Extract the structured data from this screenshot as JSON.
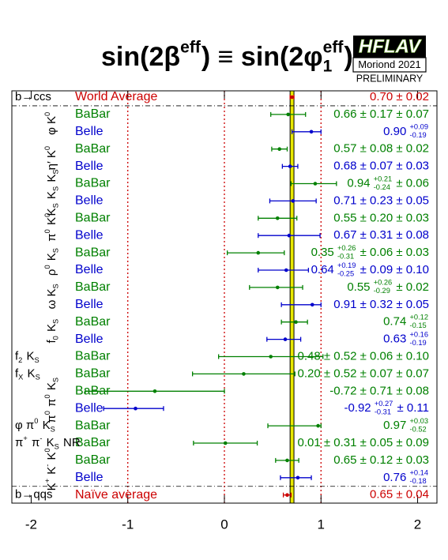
{
  "chart_data": {
    "type": "forest",
    "title": [
      {
        "t": "sin(2β"
      },
      {
        "sup": "eff"
      },
      {
        "t": ") ≡ sin(2φ"
      },
      {
        "sup": "eff",
        "sub": "1"
      },
      {
        "t": ")"
      }
    ],
    "logo": {
      "name": "HFLAV",
      "conference": "Moriond 2021",
      "status": "PRELIMINARY"
    },
    "xlim": [
      -2.2,
      2.2
    ],
    "xticks": [
      -2,
      -1,
      0,
      1,
      2
    ],
    "reference_lines": [
      -1,
      0,
      1
    ],
    "band": {
      "low": 0.68,
      "high": 0.72,
      "color": "#e8e800"
    },
    "groups": [
      {
        "mode": [
          {
            "t": "b→ccs"
          }
        ],
        "rows": [
          {
            "experiment": "World Average",
            "color": "#cc0000",
            "value": 0.7,
            "err_minus": 0.02,
            "err_plus": 0.02,
            "value_label": [
              {
                "t": "0.70 ± 0.02"
              }
            ]
          }
        ]
      },
      {
        "mode": [
          {
            "t": "φ K"
          },
          {
            "sup": "0"
          }
        ],
        "rows": [
          {
            "experiment": "BaBar",
            "color": "#008000",
            "value": 0.66,
            "err_minus": 0.18,
            "err_plus": 0.18,
            "value_label": [
              {
                "t": "0.66 ± 0.17 ± 0.07"
              }
            ]
          },
          {
            "experiment": "Belle",
            "color": "#0000cc",
            "value": 0.9,
            "err_minus": 0.2,
            "err_plus": 0.1,
            "value_label": [
              {
                "t": "0.90 "
              },
              {
                "sup": "+0.09",
                "sub": "-0.19"
              }
            ]
          }
        ]
      },
      {
        "mode": [
          {
            "t": "η′ K"
          },
          {
            "sup": "0"
          }
        ],
        "rows": [
          {
            "experiment": "BaBar",
            "color": "#008000",
            "value": 0.57,
            "err_minus": 0.08,
            "err_plus": 0.08,
            "value_label": [
              {
                "t": "0.57 ± 0.08 ± 0.02"
              }
            ]
          },
          {
            "experiment": "Belle",
            "color": "#0000cc",
            "value": 0.68,
            "err_minus": 0.08,
            "err_plus": 0.08,
            "value_label": [
              {
                "t": "0.68 ± 0.07 ± 0.03"
              }
            ]
          }
        ]
      },
      {
        "mode": [
          {
            "t": "K"
          },
          {
            "sub": "S"
          },
          {
            "t": " K"
          },
          {
            "sub": "S"
          },
          {
            "t": " K"
          },
          {
            "sub": "S"
          }
        ],
        "rows": [
          {
            "experiment": "BaBar",
            "color": "#008000",
            "value": 0.94,
            "err_minus": 0.25,
            "err_plus": 0.22,
            "value_label": [
              {
                "t": "0.94 "
              },
              {
                "sup": "+0.21",
                "sub": "-0.24"
              },
              {
                "t": " ± 0.06"
              }
            ]
          },
          {
            "experiment": "Belle",
            "color": "#0000cc",
            "value": 0.71,
            "err_minus": 0.24,
            "err_plus": 0.24,
            "value_label": [
              {
                "t": "0.71 ± 0.23 ± 0.05"
              }
            ]
          }
        ]
      },
      {
        "mode": [
          {
            "t": "π"
          },
          {
            "sup": "0"
          },
          {
            "t": " K"
          },
          {
            "sup": "0"
          }
        ],
        "rows": [
          {
            "experiment": "BaBar",
            "color": "#008000",
            "value": 0.55,
            "err_minus": 0.2,
            "err_plus": 0.2,
            "value_label": [
              {
                "t": "0.55 ± 0.20 ± 0.03"
              }
            ]
          },
          {
            "experiment": "Belle",
            "color": "#0000cc",
            "value": 0.67,
            "err_minus": 0.32,
            "err_plus": 0.32,
            "value_label": [
              {
                "t": "0.67 ± 0.31 ± 0.08"
              }
            ]
          }
        ]
      },
      {
        "mode": [
          {
            "t": "ρ"
          },
          {
            "sup": "0"
          },
          {
            "t": " K"
          },
          {
            "sub": "S"
          }
        ],
        "rows": [
          {
            "experiment": "BaBar",
            "color": "#008000",
            "value": 0.35,
            "err_minus": 0.32,
            "err_plus": 0.27,
            "value_label": [
              {
                "t": "0.35 "
              },
              {
                "sup": "+0.26",
                "sub": "-0.31"
              },
              {
                "t": " ± 0.06 ± 0.03"
              }
            ]
          },
          {
            "experiment": "Belle",
            "color": "#0000cc",
            "value": 0.64,
            "err_minus": 0.29,
            "err_plus": 0.23,
            "value_label": [
              {
                "t": "0.64 "
              },
              {
                "sup": "+0.19",
                "sub": "-0.25"
              },
              {
                "t": " ± 0.09 ± 0.10"
              }
            ]
          }
        ]
      },
      {
        "mode": [
          {
            "t": "ω K"
          },
          {
            "sub": "S"
          }
        ],
        "rows": [
          {
            "experiment": "BaBar",
            "color": "#008000",
            "value": 0.55,
            "err_minus": 0.29,
            "err_plus": 0.26,
            "value_label": [
              {
                "t": "0.55 "
              },
              {
                "sup": "+0.26",
                "sub": "-0.29"
              },
              {
                "t": " ± 0.02"
              }
            ]
          },
          {
            "experiment": "Belle",
            "color": "#0000cc",
            "value": 0.91,
            "err_minus": 0.32,
            "err_plus": 0.09,
            "value_label": [
              {
                "t": "0.91 ± 0.32 ± 0.05"
              }
            ]
          }
        ]
      },
      {
        "mode": [
          {
            "t": "f"
          },
          {
            "sub": "0"
          },
          {
            "t": " K"
          },
          {
            "sub": "S"
          }
        ],
        "rows": [
          {
            "experiment": "BaBar",
            "color": "#008000",
            "value": 0.74,
            "err_minus": 0.15,
            "err_plus": 0.12,
            "value_label": [
              {
                "t": "0.74 "
              },
              {
                "sup": "+0.12",
                "sub": "-0.15"
              }
            ]
          },
          {
            "experiment": "Belle",
            "color": "#0000cc",
            "value": 0.63,
            "err_minus": 0.19,
            "err_plus": 0.16,
            "value_label": [
              {
                "t": "0.63 "
              },
              {
                "sup": "+0.16",
                "sub": "-0.19"
              }
            ]
          }
        ]
      },
      {
        "mode": [
          {
            "t": "f"
          },
          {
            "sub": "2"
          },
          {
            "t": " K"
          },
          {
            "sub": "S"
          }
        ],
        "rows": [
          {
            "experiment": "BaBar",
            "color": "#008000",
            "value": 0.48,
            "err_minus": 0.54,
            "err_plus": 0.54,
            "value_label": [
              {
                "t": "0.48 ± 0.52 ± 0.06 ± 0.10"
              }
            ]
          }
        ]
      },
      {
        "mode": [
          {
            "t": "f"
          },
          {
            "sub": "X"
          },
          {
            "t": " K"
          },
          {
            "sub": "S"
          }
        ],
        "rows": [
          {
            "experiment": "BaBar",
            "color": "#008000",
            "value": 0.2,
            "err_minus": 0.53,
            "err_plus": 0.53,
            "value_label": [
              {
                "t": "0.20 ± 0.52 ± 0.07 ± 0.07"
              }
            ]
          }
        ]
      },
      {
        "mode": [
          {
            "t": "π"
          },
          {
            "sup": "0"
          },
          {
            "t": " π"
          },
          {
            "sup": "0"
          },
          {
            "t": " K"
          },
          {
            "sub": "S"
          }
        ],
        "rows": [
          {
            "experiment": "BaBar",
            "color": "#008000",
            "value": -0.72,
            "err_minus": 0.72,
            "err_plus": 0.72,
            "value_label": [
              {
                "t": "-0.72 ± 0.71 ± 0.08"
              }
            ]
          },
          {
            "experiment": "Belle",
            "color": "#0000cc",
            "value": -0.92,
            "err_minus": 0.33,
            "err_plus": 0.29,
            "value_label": [
              {
                "t": "-0.92 "
              },
              {
                "sup": "+0.27",
                "sub": "-0.31"
              },
              {
                "t": " ± 0.11"
              }
            ]
          }
        ]
      },
      {
        "mode": [
          {
            "t": "φ π"
          },
          {
            "sup": "0"
          },
          {
            "t": " K"
          },
          {
            "sub": "S"
          }
        ],
        "rows": [
          {
            "experiment": "BaBar",
            "color": "#008000",
            "value": 0.97,
            "err_minus": 0.52,
            "err_plus": 0.03,
            "value_label": [
              {
                "t": "0.97 "
              },
              {
                "sup": "+0.03",
                "sub": "-0.52"
              }
            ]
          }
        ]
      },
      {
        "mode": [
          {
            "t": "π"
          },
          {
            "sup": "+"
          },
          {
            "t": " π"
          },
          {
            "sup": "-"
          },
          {
            "t": " K"
          },
          {
            "sub": "S"
          },
          {
            "t": " NR"
          }
        ],
        "rows": [
          {
            "experiment": "BaBar",
            "color": "#008000",
            "value": 0.01,
            "err_minus": 0.33,
            "err_plus": 0.33,
            "value_label": [
              {
                "t": "0.01 ± 0.31 ± 0.05 ± 0.09"
              }
            ]
          }
        ]
      },
      {
        "mode": [
          {
            "t": "K"
          },
          {
            "sup": "+"
          },
          {
            "t": " K"
          },
          {
            "sup": "-"
          },
          {
            "t": " K"
          },
          {
            "sup": "0"
          }
        ],
        "rows": [
          {
            "experiment": "BaBar",
            "color": "#008000",
            "value": 0.65,
            "err_minus": 0.12,
            "err_plus": 0.12,
            "value_label": [
              {
                "t": "0.65 ± 0.12 ± 0.03"
              }
            ]
          },
          {
            "experiment": "Belle",
            "color": "#0000cc",
            "value": 0.76,
            "err_minus": 0.18,
            "err_plus": 0.14,
            "value_label": [
              {
                "t": "0.76 "
              },
              {
                "sup": "+0.14",
                "sub": "-0.18"
              }
            ]
          }
        ]
      },
      {
        "mode": [
          {
            "t": "b→qqs"
          }
        ],
        "rows": [
          {
            "experiment": "Naïve average",
            "color": "#cc0000",
            "value": 0.65,
            "err_minus": 0.04,
            "err_plus": 0.04,
            "value_label": [
              {
                "t": "0.65 ± 0.04"
              }
            ]
          }
        ]
      }
    ]
  }
}
